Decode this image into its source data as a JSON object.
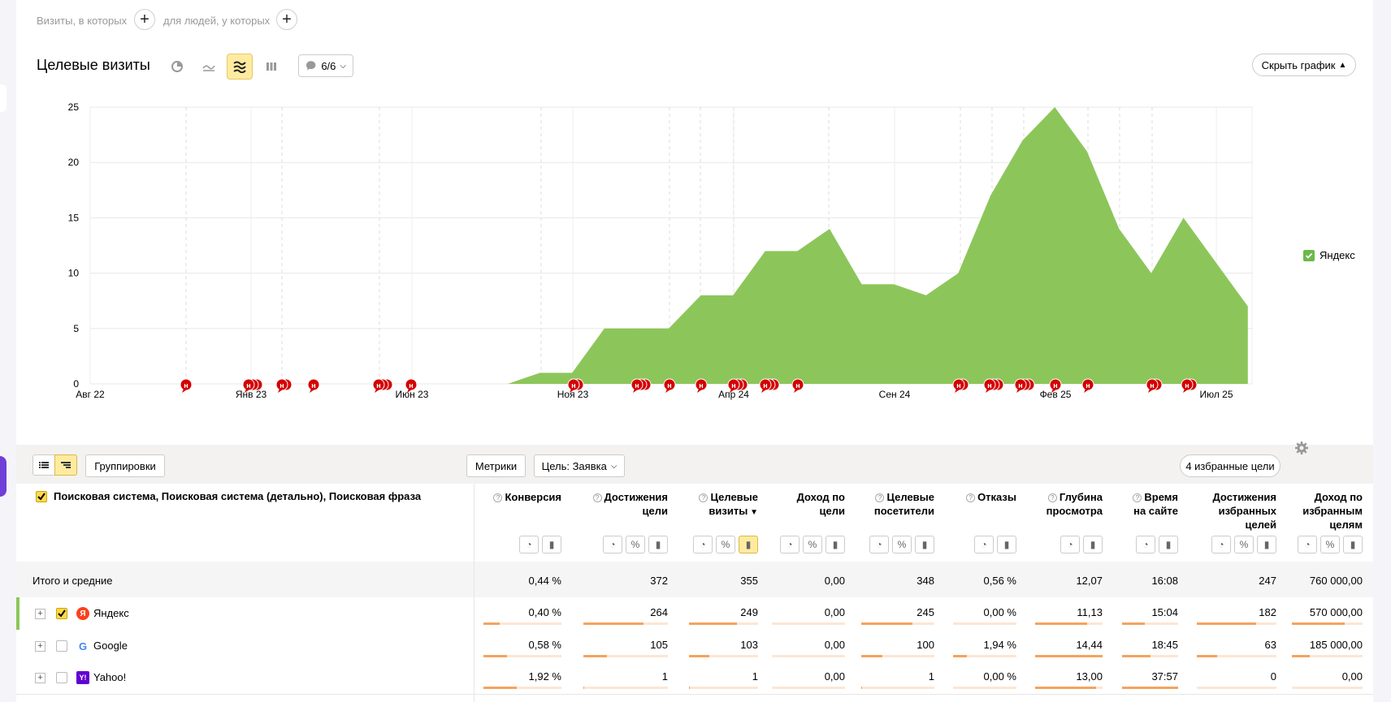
{
  "filters": {
    "visits_label": "Визиты, в которых",
    "people_label": "для людей, у которых"
  },
  "chart_header": {
    "title": "Целевые визиты",
    "notes_count": "6/6",
    "hide_chart_label": "Скрыть график"
  },
  "chart_data": {
    "type": "area",
    "xlabel": "",
    "ylabel": "",
    "ylim": [
      0,
      25
    ],
    "yticks": [
      "0",
      "5",
      "10",
      "15",
      "20",
      "25"
    ],
    "x_tick_labels": [
      "Авг 22",
      "Янв 23",
      "Июн 23",
      "Ноя 23",
      "Апр 24",
      "Сен 24",
      "Фев 25",
      "Июл 25"
    ],
    "x": [
      "2023-09",
      "2023-10",
      "2023-11",
      "2023-12",
      "2024-01",
      "2024-02",
      "2024-03",
      "2024-04",
      "2024-05",
      "2024-06",
      "2024-07",
      "2024-08",
      "2024-09",
      "2024-10",
      "2024-11",
      "2024-12",
      "2025-01",
      "2025-02",
      "2025-03",
      "2025-04",
      "2025-05",
      "2025-06",
      "2025-07",
      "2025-08"
    ],
    "series": [
      {
        "name": "Яндекс",
        "color": "#8cc65a",
        "values": [
          0,
          1,
          1,
          5,
          5,
          5,
          8,
          8,
          12,
          12,
          14,
          9,
          9,
          8,
          10,
          17,
          22,
          25,
          21,
          14,
          10,
          15,
          11,
          7
        ]
      }
    ],
    "annotation_marker": "н",
    "grid": true,
    "legend_position": "right"
  },
  "table_toolbar": {
    "groupings_label": "Группировки",
    "metrics_label": "Метрики",
    "goal_label": "Цель: Заявка",
    "favorites_label": "4 избранные цели"
  },
  "table": {
    "dimension_header": "Поисковая система, Поисковая система (детально), Поисковая фраза",
    "columns": [
      {
        "l1": "Конверсия",
        "l2": "",
        "l3": "",
        "help": true
      },
      {
        "l1": "Достижения",
        "l2": "цели",
        "l3": "",
        "help": true
      },
      {
        "l1": "Целевые",
        "l2": "визиты",
        "l3": "",
        "help": true,
        "sorted": "▼"
      },
      {
        "l1": "Доход по",
        "l2": "цели",
        "l3": "",
        "help": false
      },
      {
        "l1": "Целевые",
        "l2": "посетители",
        "l3": "",
        "help": true
      },
      {
        "l1": "Отказы",
        "l2": "",
        "l3": "",
        "help": true
      },
      {
        "l1": "Глубина",
        "l2": "просмотра",
        "l3": "",
        "help": true
      },
      {
        "l1": "Время",
        "l2": "на сайте",
        "l3": "",
        "help": true
      },
      {
        "l1": "Достижения",
        "l2": "избранных",
        "l3": "целей",
        "help": false
      },
      {
        "l1": "Доход по",
        "l2": "избранным",
        "l3": "целям",
        "help": false
      }
    ],
    "total": {
      "label": "Итого и средние",
      "values": [
        "0,44 %",
        "372",
        "355",
        "0,00",
        "348",
        "0,56 %",
        "12,07",
        "16:08",
        "247",
        "760 000,00"
      ]
    },
    "rows": [
      {
        "label": "Яндекс",
        "icon": "Я",
        "checked": true,
        "values": [
          "0,40 %",
          "264",
          "249",
          "0,00",
          "245",
          "0,00 %",
          "11,13",
          "15:04",
          "182",
          "570 000,00"
        ],
        "bars": [
          0.21,
          0.71,
          0.7,
          0,
          0.7,
          0,
          0.77,
          0.4,
          0.74,
          0.75
        ]
      },
      {
        "label": "Google",
        "icon": "G",
        "checked": false,
        "values": [
          "0,58 %",
          "105",
          "103",
          "0,00",
          "100",
          "1,94 %",
          "14,44",
          "18:45",
          "63",
          "185 000,00"
        ],
        "bars": [
          0.3,
          0.28,
          0.29,
          0,
          0.29,
          0.22,
          1.0,
          0.5,
          0.26,
          0.25
        ]
      },
      {
        "label": "Yahoo!",
        "icon": "Y!",
        "checked": false,
        "values": [
          "1,92 %",
          "1",
          "1",
          "0,00",
          "1",
          "0,00 %",
          "13,00",
          "37:57",
          "0",
          "0,00"
        ],
        "bars": [
          0.43,
          0.01,
          0.01,
          0,
          0.01,
          0,
          0.9,
          1.0,
          0,
          0
        ]
      }
    ]
  }
}
